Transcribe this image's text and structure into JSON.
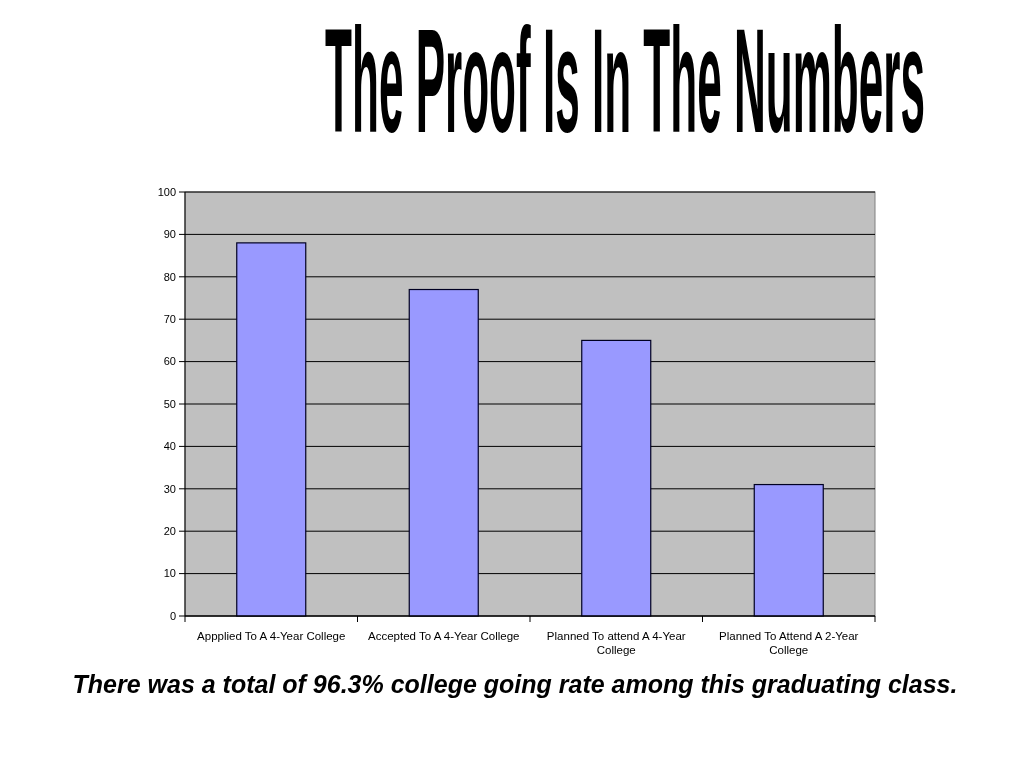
{
  "chart_data": {
    "type": "bar",
    "title": "The Proof Is In The Numbers",
    "categories": [
      "Appplied To A 4-Year College",
      "Accepted To A 4-Year College",
      "Planned To attend A 4-Year College",
      "Planned To Attend A 2-Year College"
    ],
    "values": [
      88,
      77,
      65,
      31
    ],
    "color": "#9999ff",
    "ylim": [
      0,
      100
    ],
    "yticks": [
      0,
      10,
      20,
      30,
      40,
      50,
      60,
      70,
      80,
      90,
      100
    ],
    "grid": "y",
    "annotations": [
      "There was a total of 96.3% college going rate among this graduating class."
    ]
  }
}
